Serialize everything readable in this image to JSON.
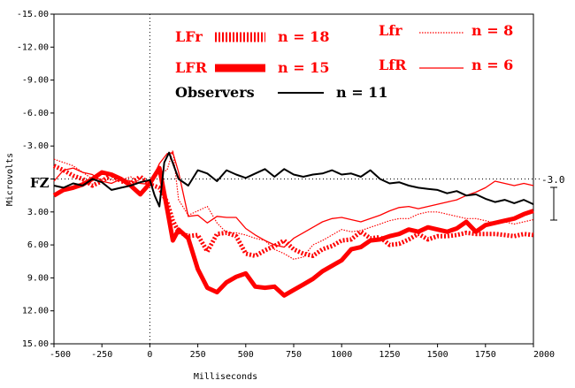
{
  "chart_data": {
    "type": "line",
    "xlabel": "Milliseconds",
    "ylabel": "Microvolts",
    "xlim": [
      -500,
      2000
    ],
    "ylim": [
      -15,
      15
    ],
    "y_inverted": true,
    "grid": false,
    "x_ticks": [
      -500,
      -250,
      0,
      250,
      500,
      750,
      1000,
      1250,
      1500,
      1750,
      2000
    ],
    "x_tick_labels": [
      "-500",
      "-250",
      "0",
      "250",
      "500",
      "750",
      "1000",
      "1250",
      "1500",
      "1750",
      "2000"
    ],
    "y_ticks": [
      -15,
      -12,
      -9,
      -6,
      -3,
      0,
      3,
      6,
      9,
      12,
      15
    ],
    "y_tick_labels": [
      "-15.00",
      "-12.00",
      "-9.00",
      "-6.00",
      "-3.00",
      "",
      "3.00",
      "6.00",
      "9.00",
      "12.00",
      "15.00"
    ],
    "channel_label": "FZ",
    "scale_label": "-3.0",
    "scale_value": 3.0,
    "series": [
      {
        "name": "LFr",
        "n_label": "n = 18",
        "color": "#ff0000",
        "style": "thick-dotted",
        "x": [
          -500,
          -450,
          -400,
          -350,
          -300,
          -250,
          -200,
          -150,
          -100,
          -50,
          0,
          50,
          90,
          120,
          150,
          200,
          250,
          300,
          350,
          400,
          450,
          500,
          550,
          600,
          650,
          700,
          750,
          800,
          850,
          900,
          950,
          1000,
          1050,
          1100,
          1150,
          1200,
          1250,
          1300,
          1350,
          1400,
          1450,
          1500,
          1550,
          1600,
          1650,
          1700,
          1750,
          1800,
          1850,
          1900,
          1950,
          2000
        ],
        "values": [
          -1.2,
          -0.8,
          -0.3,
          0,
          0.6,
          0.2,
          -0.4,
          0.2,
          0.4,
          -0.2,
          0.5,
          0.8,
          2.1,
          3.8,
          4.8,
          5.2,
          5.1,
          6.6,
          5.0,
          4.9,
          5.2,
          6.8,
          7.0,
          6.5,
          6.1,
          5.6,
          6.4,
          6.8,
          7.0,
          6.4,
          6.1,
          5.6,
          5.5,
          4.8,
          5.4,
          5.3,
          6.0,
          5.9,
          5.5,
          5.0,
          5.5,
          5.2,
          5.2,
          5.1,
          4.9,
          5.0,
          5.0,
          5.0,
          5.1,
          5.2,
          5.0,
          5.1
        ]
      },
      {
        "name": "LFR",
        "n_label": "n = 15",
        "color": "#ff0000",
        "style": "very-thick",
        "x": [
          -500,
          -450,
          -400,
          -350,
          -300,
          -250,
          -200,
          -150,
          -100,
          -50,
          0,
          50,
          90,
          120,
          150,
          200,
          250,
          300,
          350,
          400,
          450,
          500,
          550,
          600,
          650,
          700,
          750,
          800,
          850,
          900,
          950,
          1000,
          1050,
          1100,
          1150,
          1200,
          1250,
          1300,
          1350,
          1400,
          1450,
          1500,
          1550,
          1600,
          1650,
          1700,
          1750,
          1800,
          1850,
          1900,
          1950,
          2000
        ],
        "values": [
          1.5,
          1.0,
          0.8,
          0.5,
          0,
          -0.6,
          -0.4,
          0,
          0.6,
          1.4,
          0.4,
          -1.0,
          2.7,
          5.6,
          4.6,
          5.4,
          8.2,
          9.9,
          10.3,
          9.4,
          8.9,
          8.6,
          9.8,
          9.9,
          9.8,
          10.6,
          10.1,
          9.6,
          9.1,
          8.4,
          7.9,
          7.4,
          6.4,
          6.2,
          5.6,
          5.5,
          5.2,
          5.0,
          4.6,
          4.8,
          4.4,
          4.6,
          4.8,
          4.5,
          3.9,
          4.8,
          4.2,
          4.0,
          3.8,
          3.6,
          3.2,
          2.9
        ]
      },
      {
        "name": "Lfr",
        "n_label": "n =  8",
        "color": "#ff0000",
        "style": "thin-dotted",
        "x": [
          -500,
          -450,
          -400,
          -350,
          -300,
          -250,
          -200,
          -150,
          -100,
          -50,
          0,
          50,
          90,
          120,
          150,
          200,
          250,
          300,
          350,
          400,
          450,
          500,
          550,
          600,
          650,
          700,
          750,
          800,
          850,
          900,
          950,
          1000,
          1050,
          1100,
          1150,
          1200,
          1250,
          1300,
          1350,
          1400,
          1450,
          1500,
          1550,
          1600,
          1650,
          1700,
          1750,
          1800,
          1850,
          1900,
          1950,
          2000
        ],
        "values": [
          -1.8,
          -1.5,
          -1.2,
          -0.6,
          0,
          0,
          0.1,
          0.1,
          -0.2,
          0.3,
          0.2,
          -0.6,
          -0.8,
          -2.6,
          1.9,
          3.3,
          2.9,
          2.5,
          4.0,
          4.9,
          4.9,
          5.1,
          5.4,
          5.6,
          6.4,
          6.8,
          7.3,
          7.1,
          6.0,
          5.6,
          5.1,
          4.6,
          4.8,
          4.7,
          4.4,
          4.1,
          3.8,
          3.6,
          3.6,
          3.2,
          3.0,
          3.0,
          3.2,
          3.4,
          3.6,
          3.6,
          3.8,
          4.0,
          3.9,
          4.1,
          3.9,
          3.7
        ]
      },
      {
        "name": "LfR",
        "n_label": "n =  6",
        "color": "#ff0000",
        "style": "thin-solid",
        "x": [
          -500,
          -450,
          -400,
          -350,
          -300,
          -250,
          -200,
          -150,
          -100,
          -50,
          0,
          50,
          90,
          120,
          150,
          200,
          250,
          300,
          350,
          400,
          450,
          500,
          550,
          600,
          650,
          700,
          750,
          800,
          850,
          900,
          950,
          1000,
          1050,
          1100,
          1150,
          1200,
          1250,
          1300,
          1350,
          1400,
          1450,
          1500,
          1550,
          1600,
          1650,
          1700,
          1750,
          1800,
          1850,
          1900,
          1950,
          2000
        ],
        "values": [
          0.2,
          -0.8,
          -1.0,
          -0.6,
          -0.4,
          0.2,
          0.4,
          0,
          0.2,
          0.4,
          0.5,
          -1.4,
          -2.3,
          -2.4,
          -0.6,
          3.4,
          3.3,
          4.0,
          3.4,
          3.5,
          3.5,
          4.5,
          5.1,
          5.6,
          6.0,
          6.2,
          5.4,
          4.9,
          4.4,
          3.9,
          3.6,
          3.5,
          3.7,
          3.9,
          3.6,
          3.3,
          2.9,
          2.6,
          2.5,
          2.7,
          2.5,
          2.3,
          2.1,
          1.9,
          1.5,
          1.2,
          0.8,
          0.2,
          0.4,
          0.6,
          0.4,
          0.6
        ]
      },
      {
        "name": "Observers",
        "n_label": "n = 11",
        "color": "#000000",
        "style": "medium-solid",
        "x": [
          -500,
          -450,
          -400,
          -350,
          -300,
          -250,
          -200,
          -150,
          -100,
          -50,
          0,
          25,
          50,
          75,
          100,
          150,
          200,
          250,
          300,
          350,
          400,
          450,
          500,
          550,
          600,
          650,
          700,
          750,
          800,
          850,
          900,
          950,
          1000,
          1050,
          1100,
          1150,
          1200,
          1250,
          1300,
          1350,
          1400,
          1450,
          1500,
          1550,
          1600,
          1650,
          1700,
          1750,
          1800,
          1850,
          1900,
          1950,
          2000
        ],
        "values": [
          0.6,
          0.8,
          0.4,
          0.6,
          0.0,
          0.3,
          1.0,
          0.8,
          0.6,
          0.3,
          0.1,
          1.5,
          2.5,
          -1.5,
          -2.4,
          0.0,
          0.6,
          -0.8,
          -0.5,
          0.2,
          -0.8,
          -0.4,
          -0.1,
          -0.5,
          -0.9,
          -0.2,
          -0.9,
          -0.4,
          -0.2,
          -0.4,
          -0.5,
          -0.8,
          -0.4,
          -0.5,
          -0.2,
          -0.8,
          0.0,
          0.4,
          0.3,
          0.6,
          0.8,
          0.9,
          1.0,
          1.3,
          1.1,
          1.5,
          1.4,
          1.8,
          2.1,
          1.9,
          2.2,
          1.9,
          2.3
        ]
      }
    ]
  }
}
